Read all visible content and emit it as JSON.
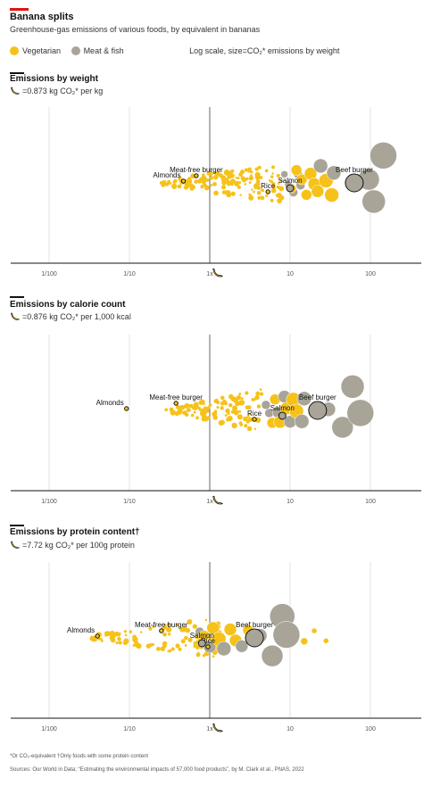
{
  "header": {
    "title": "Banana splits",
    "subtitle": "Greenhouse-gas emissions of various foods, by equivalent in bananas"
  },
  "legend": {
    "vegetarian": "Vegetarian",
    "meat": "Meat & fish",
    "note": "Log scale, size=CO₂* emissions by weight",
    "colors": {
      "vegetarian": "#f6c21a",
      "meat": "#a8a498"
    }
  },
  "footnote": "*Or CO₂-equivalent   †Only foods with some protein content",
  "sources": "Sources: Our World in Data; “Estimating the environmental impacts of 57,000 food products”, by M. Clark et al., PNAS, 2022",
  "chart_data": [
    {
      "type": "scatter",
      "title": "Emissions by weight",
      "unit": "=0.873 kg CO₂* per kg",
      "xscale": "log",
      "xlim": [
        0.01,
        200
      ],
      "xticks": [
        0.01,
        0.1,
        1,
        10,
        100
      ],
      "xtick_labels": [
        "1/100",
        "1/10",
        "1x",
        "10",
        "100"
      ],
      "labelled": [
        {
          "name": "Almonds",
          "x": 0.47,
          "group": "veg"
        },
        {
          "name": "Meat-free burger",
          "x": 0.68,
          "group": "veg"
        },
        {
          "name": "Rice",
          "x": 5.3,
          "group": "veg"
        },
        {
          "name": "Salmon",
          "x": 10,
          "group": "meat"
        },
        {
          "name": "Beef burger",
          "x": 63,
          "group": "meat"
        }
      ],
      "veg_cluster": {
        "min": 0.25,
        "max": 8,
        "count": 150
      },
      "large": [
        {
          "x": 8.5,
          "r": 4,
          "g": "meat"
        },
        {
          "x": 9.5,
          "r": 4,
          "g": "meat"
        },
        {
          "x": 11,
          "r": 5,
          "g": "meat"
        },
        {
          "x": 12.5,
          "r": 5,
          "g": "meat"
        },
        {
          "x": 13.5,
          "r": 5,
          "g": "meat"
        },
        {
          "x": 10.5,
          "r": 5,
          "g": "veg"
        },
        {
          "x": 12,
          "r": 6,
          "g": "veg"
        },
        {
          "x": 14,
          "r": 6,
          "g": "veg"
        },
        {
          "x": 16,
          "r": 6,
          "g": "veg"
        },
        {
          "x": 18,
          "r": 7,
          "g": "veg"
        },
        {
          "x": 20,
          "r": 7,
          "g": "veg"
        },
        {
          "x": 22,
          "r": 7,
          "g": "veg"
        },
        {
          "x": 24,
          "r": 8,
          "g": "meat"
        },
        {
          "x": 28,
          "r": 8,
          "g": "veg"
        },
        {
          "x": 33,
          "r": 8,
          "g": "veg"
        },
        {
          "x": 35,
          "r": 8,
          "g": "meat"
        },
        {
          "x": 95,
          "r": 12,
          "g": "meat"
        },
        {
          "x": 110,
          "r": 13,
          "g": "meat"
        },
        {
          "x": 145,
          "r": 15,
          "g": "meat"
        }
      ]
    },
    {
      "type": "scatter",
      "title": "Emissions by calorie count",
      "unit": "=0.876 kg CO₂* per 1,000 kcal",
      "xscale": "log",
      "xlim": [
        0.01,
        200
      ],
      "xticks": [
        0.01,
        0.1,
        1,
        10,
        100
      ],
      "xtick_labels": [
        "1/100",
        "1/10",
        "1x",
        "10",
        "100"
      ],
      "labelled": [
        {
          "name": "Almonds",
          "x": 0.092,
          "group": "veg"
        },
        {
          "name": "Meat-free burger",
          "x": 0.38,
          "group": "veg"
        },
        {
          "name": "Rice",
          "x": 3.6,
          "group": "veg"
        },
        {
          "name": "Salmon",
          "x": 8,
          "group": "meat"
        },
        {
          "name": "Beef burger",
          "x": 22,
          "group": "meat"
        }
      ],
      "veg_cluster": {
        "min": 0.28,
        "max": 4.5,
        "count": 110
      },
      "large": [
        {
          "x": 5,
          "r": 5,
          "g": "meat"
        },
        {
          "x": 5.5,
          "r": 5,
          "g": "meat"
        },
        {
          "x": 6,
          "r": 6,
          "g": "veg"
        },
        {
          "x": 6.5,
          "r": 6,
          "g": "veg"
        },
        {
          "x": 7,
          "r": 6,
          "g": "meat"
        },
        {
          "x": 7.5,
          "r": 7,
          "g": "veg"
        },
        {
          "x": 8.5,
          "r": 7,
          "g": "meat"
        },
        {
          "x": 9,
          "r": 7,
          "g": "veg"
        },
        {
          "x": 10,
          "r": 7,
          "g": "meat"
        },
        {
          "x": 11,
          "r": 8,
          "g": "veg"
        },
        {
          "x": 12,
          "r": 8,
          "g": "veg"
        },
        {
          "x": 14,
          "r": 8,
          "g": "meat"
        },
        {
          "x": 15,
          "r": 8,
          "g": "meat"
        },
        {
          "x": 30,
          "r": 8,
          "g": "meat"
        },
        {
          "x": 45,
          "r": 12,
          "g": "meat"
        },
        {
          "x": 60,
          "r": 13,
          "g": "meat"
        },
        {
          "x": 75,
          "r": 15,
          "g": "meat"
        }
      ]
    },
    {
      "type": "scatter",
      "title": "Emissions by protein content†",
      "unit": "=7.72 kg CO₂* per 100g protein",
      "xscale": "log",
      "xlim": [
        0.01,
        200
      ],
      "xticks": [
        0.01,
        0.1,
        1,
        10,
        100
      ],
      "xtick_labels": [
        "1/100",
        "1/10",
        "1x",
        "10",
        "100"
      ],
      "labelled": [
        {
          "name": "Almonds",
          "x": 0.04,
          "group": "veg"
        },
        {
          "name": "Meat-free burger",
          "x": 0.25,
          "group": "veg"
        },
        {
          "name": "Rice",
          "x": 0.95,
          "group": "veg"
        },
        {
          "name": "Salmon",
          "x": 0.8,
          "group": "meat"
        },
        {
          "name": "Beef burger",
          "x": 3.6,
          "group": "meat"
        }
      ],
      "veg_cluster": {
        "min": 0.03,
        "max": 1.4,
        "count": 110
      },
      "large": [
        {
          "x": 0.75,
          "r": 5,
          "g": "meat"
        },
        {
          "x": 0.85,
          "r": 6,
          "g": "veg"
        },
        {
          "x": 1.0,
          "r": 7,
          "g": "meat"
        },
        {
          "x": 1.1,
          "r": 7,
          "g": "veg"
        },
        {
          "x": 1.3,
          "r": 8,
          "g": "veg"
        },
        {
          "x": 1.5,
          "r": 8,
          "g": "meat"
        },
        {
          "x": 1.8,
          "r": 7,
          "g": "veg"
        },
        {
          "x": 2.1,
          "r": 7,
          "g": "veg"
        },
        {
          "x": 2.5,
          "r": 7,
          "g": "meat"
        },
        {
          "x": 3.0,
          "r": 6,
          "g": "veg"
        },
        {
          "x": 4.2,
          "r": 8,
          "g": "meat"
        },
        {
          "x": 6,
          "r": 12,
          "g": "meat"
        },
        {
          "x": 8,
          "r": 14,
          "g": "meat"
        },
        {
          "x": 9,
          "r": 15,
          "g": "meat"
        },
        {
          "x": 15,
          "r": 4,
          "g": "veg"
        },
        {
          "x": 20,
          "r": 3,
          "g": "veg"
        },
        {
          "x": 28,
          "r": 3,
          "g": "veg"
        }
      ]
    }
  ]
}
